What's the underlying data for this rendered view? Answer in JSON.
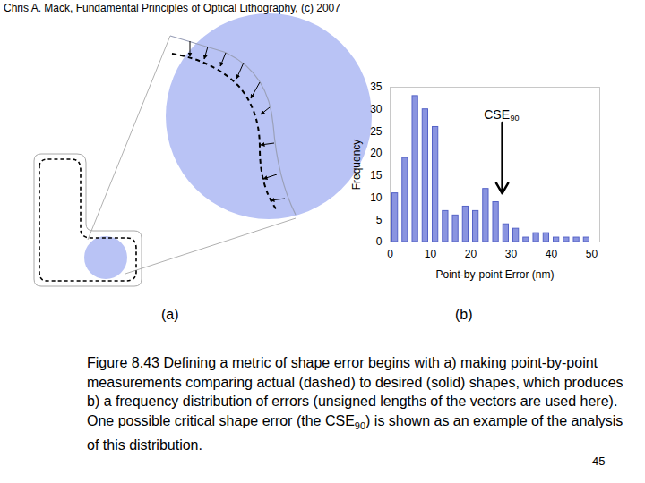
{
  "header": "Chris A. Mack, Fundamental Principles of Optical Lithography, (c) 2007",
  "panel_labels": [
    "(a)",
    "(b)"
  ],
  "caption": [
    {
      "text": "Figure 8.43  Defining a metric of shape error begins with a) making point-by-point measurements comparing actual (dashed) to desired (solid) shapes, which produces b) a frequency distribution of errors (unsigned lengths of the vectors are used here).  One possible critical shape error (the CSE"
    },
    {
      "text": "90",
      "sub": true
    },
    {
      "text": ") is shown as an example of the analysis of this distribution."
    }
  ],
  "page_number": "45",
  "chart_data": {
    "type": "histogram",
    "xlabel": "Point-by-point Error (nm)",
    "ylabel": "Frequency",
    "bins": [
      0,
      2.5,
      5,
      7.5,
      10,
      12.5,
      15,
      17.5,
      20,
      22.5,
      25,
      27.5,
      30,
      32.5,
      35,
      37.5,
      40,
      42.5,
      45,
      47.5,
      50
    ],
    "values": [
      11,
      19,
      33,
      30,
      26,
      7,
      6,
      8,
      7,
      12,
      9,
      4,
      3,
      1,
      2,
      2,
      1,
      1,
      1,
      1
    ],
    "color": "#8a94e0",
    "xlim": [
      0,
      52
    ],
    "xticks": [
      0,
      10,
      20,
      30,
      40,
      50
    ],
    "ylim": [
      0,
      35
    ],
    "yticks": [
      0,
      5,
      10,
      15,
      20,
      25,
      30,
      35
    ],
    "annotations": [
      {
        "text": "CSE",
        "subscript": "90",
        "x": 27.8,
        "y_from": 27,
        "y_to": 11
      }
    ]
  }
}
